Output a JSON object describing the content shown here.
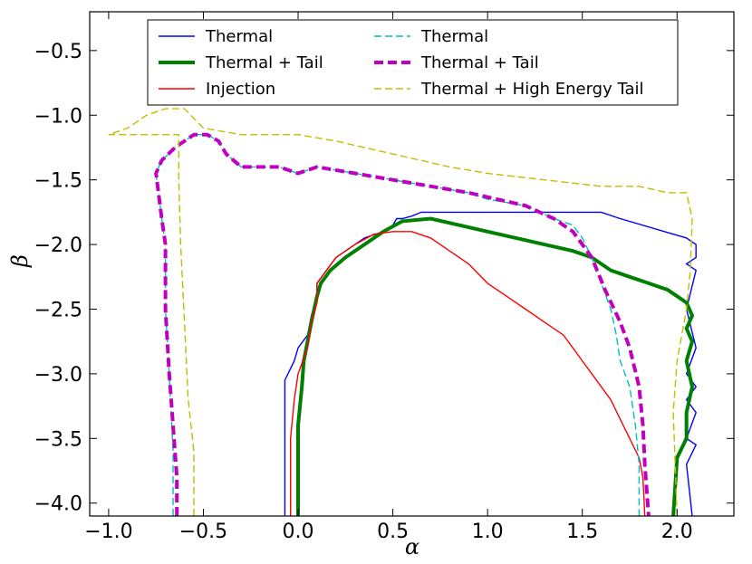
{
  "chart_data": {
    "type": "line",
    "title": "",
    "xlabel": "α",
    "ylabel": "β",
    "xlim": [
      -1.1,
      2.3
    ],
    "ylim": [
      -4.1,
      -0.2
    ],
    "xticks": [
      -1.0,
      -0.5,
      0.0,
      0.5,
      1.0,
      1.5,
      2.0
    ],
    "xtick_labels": [
      "−1.0",
      "−0.5",
      "0.0",
      "0.5",
      "1.0",
      "1.5",
      "2.0"
    ],
    "yticks": [
      -0.5,
      -1.0,
      -1.5,
      -2.0,
      -2.5,
      -3.0,
      -3.5,
      -4.0
    ],
    "ytick_labels": [
      "−0.5",
      "−1.0",
      "−1.5",
      "−2.0",
      "−2.5",
      "−3.0",
      "−3.5",
      "−4.0"
    ],
    "grid": false,
    "legend_position": "top",
    "series": [
      {
        "name": "Thermal",
        "color": "#0000ff",
        "style": "solid",
        "width": 1.4,
        "x": [
          -0.07,
          -0.07,
          -0.02,
          0.0,
          0.05,
          0.07,
          0.08,
          0.1,
          0.1,
          0.15,
          0.2,
          0.3,
          0.35,
          0.45,
          0.5,
          0.52,
          0.55,
          0.6,
          0.65,
          0.7,
          0.75,
          0.8,
          1.0,
          1.2,
          1.6,
          1.7,
          2.05,
          2.1,
          2.1,
          2.05,
          2.1,
          2.05,
          2.1,
          2.05,
          2.1,
          2.05,
          2.1,
          2.05,
          2.1,
          2.05,
          2.08
        ],
        "y": [
          -4.1,
          -3.05,
          -2.9,
          -2.8,
          -2.7,
          -2.55,
          -2.5,
          -2.4,
          -2.3,
          -2.2,
          -2.1,
          -2.0,
          -1.95,
          -1.9,
          -1.85,
          -1.8,
          -1.8,
          -1.78,
          -1.75,
          -1.75,
          -1.75,
          -1.75,
          -1.75,
          -1.75,
          -1.75,
          -1.8,
          -1.95,
          -2.0,
          -2.1,
          -2.15,
          -2.2,
          -2.5,
          -2.8,
          -3.0,
          -3.1,
          -3.2,
          -3.3,
          -3.5,
          -3.55,
          -3.7,
          -4.1
        ]
      },
      {
        "name": "Thermal + Tail",
        "color": "#008000",
        "style": "solid",
        "width": 4,
        "x": [
          0.0,
          0.0,
          0.02,
          0.03,
          0.05,
          0.07,
          0.1,
          0.12,
          0.17,
          0.25,
          0.35,
          0.45,
          0.55,
          0.7,
          0.85,
          1.0,
          1.15,
          1.3,
          1.45,
          1.55,
          1.65,
          1.75,
          1.85,
          1.95,
          2.0,
          2.05,
          2.08,
          2.05,
          2.08,
          2.05,
          2.08,
          2.05,
          2.05,
          2.0,
          1.98
        ],
        "y": [
          -4.1,
          -3.4,
          -3.1,
          -2.9,
          -2.75,
          -2.6,
          -2.4,
          -2.3,
          -2.2,
          -2.1,
          -2.0,
          -1.9,
          -1.82,
          -1.8,
          -1.85,
          -1.9,
          -1.95,
          -2.0,
          -2.05,
          -2.1,
          -2.2,
          -2.25,
          -2.3,
          -2.35,
          -2.4,
          -2.45,
          -2.55,
          -2.65,
          -2.75,
          -2.9,
          -3.1,
          -3.3,
          -3.5,
          -3.65,
          -4.1
        ]
      },
      {
        "name": "Injection",
        "color": "#ff0000",
        "style": "solid",
        "width": 1.4,
        "x": [
          -0.04,
          -0.04,
          -0.02,
          0.0,
          0.05,
          0.07,
          0.1,
          0.1,
          0.15,
          0.2,
          0.3,
          0.4,
          0.5,
          0.6,
          0.7,
          0.8,
          0.9,
          1.0,
          1.1,
          1.2,
          1.3,
          1.4,
          1.45,
          1.5,
          1.55,
          1.6,
          1.65,
          1.7,
          1.75,
          1.8,
          1.82,
          1.83
        ],
        "y": [
          -4.1,
          -3.5,
          -3.2,
          -3.0,
          -2.8,
          -2.6,
          -2.45,
          -2.3,
          -2.2,
          -2.1,
          -2.0,
          -1.92,
          -1.9,
          -1.9,
          -1.95,
          -2.05,
          -2.15,
          -2.3,
          -2.4,
          -2.5,
          -2.6,
          -2.7,
          -2.8,
          -2.9,
          -3.0,
          -3.1,
          -3.2,
          -3.35,
          -3.5,
          -3.65,
          -3.8,
          -4.1
        ]
      },
      {
        "name": "Thermal",
        "color": "#00bfbf",
        "style": "dashed",
        "width": 1.4,
        "x": [
          -0.66,
          -0.66,
          -0.68,
          -0.7,
          -0.7,
          -0.72,
          -0.75,
          -0.72,
          -0.65,
          -0.55,
          -0.48,
          -0.42,
          -0.38,
          -0.3,
          -0.1,
          0.0,
          0.1,
          0.3,
          0.5,
          0.7,
          0.9,
          1.0,
          1.2,
          1.35,
          1.45,
          1.5,
          1.55,
          1.6,
          1.65,
          1.68,
          1.7,
          1.75,
          1.78,
          1.8,
          1.8
        ],
        "y": [
          -4.1,
          -3.6,
          -3.0,
          -2.5,
          -2.0,
          -1.8,
          -1.45,
          -1.35,
          -1.25,
          -1.15,
          -1.15,
          -1.2,
          -1.3,
          -1.4,
          -1.4,
          -1.45,
          -1.4,
          -1.45,
          -1.5,
          -1.55,
          -1.6,
          -1.65,
          -1.7,
          -1.8,
          -1.85,
          -1.95,
          -2.1,
          -2.3,
          -2.5,
          -2.7,
          -2.9,
          -3.1,
          -3.4,
          -3.7,
          -4.1
        ]
      },
      {
        "name": "Thermal + Tail",
        "color": "#bf00bf",
        "style": "dashed",
        "width": 4,
        "x": [
          -0.64,
          -0.64,
          -0.66,
          -0.68,
          -0.7,
          -0.7,
          -0.72,
          -0.75,
          -0.72,
          -0.65,
          -0.55,
          -0.48,
          -0.42,
          -0.38,
          -0.3,
          -0.1,
          0.0,
          0.1,
          0.3,
          0.5,
          0.7,
          0.9,
          1.05,
          1.2,
          1.35,
          1.45,
          1.55,
          1.62,
          1.7,
          1.75,
          1.8,
          1.82,
          1.83,
          1.85
        ],
        "y": [
          -4.1,
          -3.8,
          -3.4,
          -3.0,
          -2.5,
          -2.0,
          -1.8,
          -1.45,
          -1.35,
          -1.25,
          -1.15,
          -1.15,
          -1.2,
          -1.3,
          -1.4,
          -1.4,
          -1.45,
          -1.4,
          -1.45,
          -1.5,
          -1.55,
          -1.6,
          -1.65,
          -1.7,
          -1.8,
          -1.9,
          -2.1,
          -2.35,
          -2.6,
          -2.8,
          -3.1,
          -3.4,
          -3.7,
          -4.1
        ]
      },
      {
        "name": "Thermal + High Energy Tail",
        "color": "#bfbf00",
        "style": "dashed",
        "width": 1.4,
        "x": [
          -0.55,
          -0.55,
          -0.58,
          -0.6,
          -0.62,
          -0.63,
          -0.63,
          -1.0,
          -0.9,
          -0.8,
          -0.7,
          -0.6,
          -0.5,
          -0.3,
          0.0,
          0.2,
          0.5,
          0.8,
          1.0,
          1.3,
          1.6,
          1.8,
          1.95,
          2.05,
          2.08,
          2.07,
          2.05,
          2.0,
          1.98,
          2.0
        ],
        "y": [
          -4.1,
          -3.6,
          -3.2,
          -2.6,
          -2.0,
          -1.5,
          -1.15,
          -1.15,
          -1.1,
          -1.0,
          -0.95,
          -0.95,
          -1.1,
          -1.15,
          -1.15,
          -1.2,
          -1.3,
          -1.4,
          -1.45,
          -1.5,
          -1.55,
          -1.55,
          -1.6,
          -1.6,
          -1.8,
          -2.2,
          -2.5,
          -2.9,
          -3.3,
          -4.1
        ]
      }
    ]
  }
}
